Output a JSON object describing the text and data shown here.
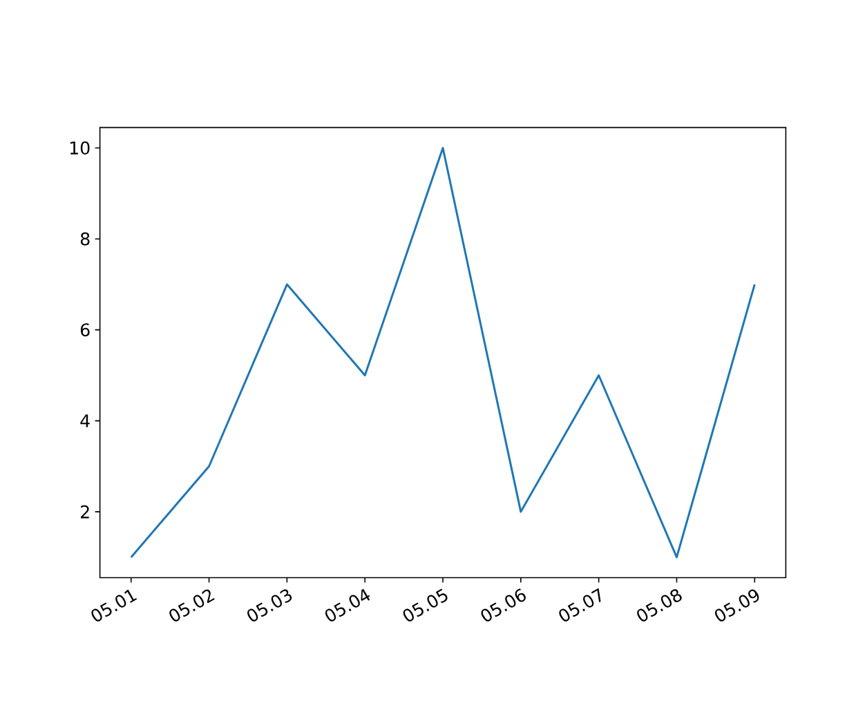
{
  "chart_data": {
    "type": "line",
    "categories": [
      "05.01",
      "05.02",
      "05.03",
      "05.04",
      "05.05",
      "05.06",
      "05.07",
      "05.08",
      "05.09"
    ],
    "values": [
      1,
      3,
      7,
      5,
      10,
      2,
      5,
      1,
      7
    ],
    "color": "#1f77b4",
    "ylim": [
      0.55,
      10.45
    ],
    "yticks": [
      2,
      4,
      6,
      8,
      10
    ]
  }
}
